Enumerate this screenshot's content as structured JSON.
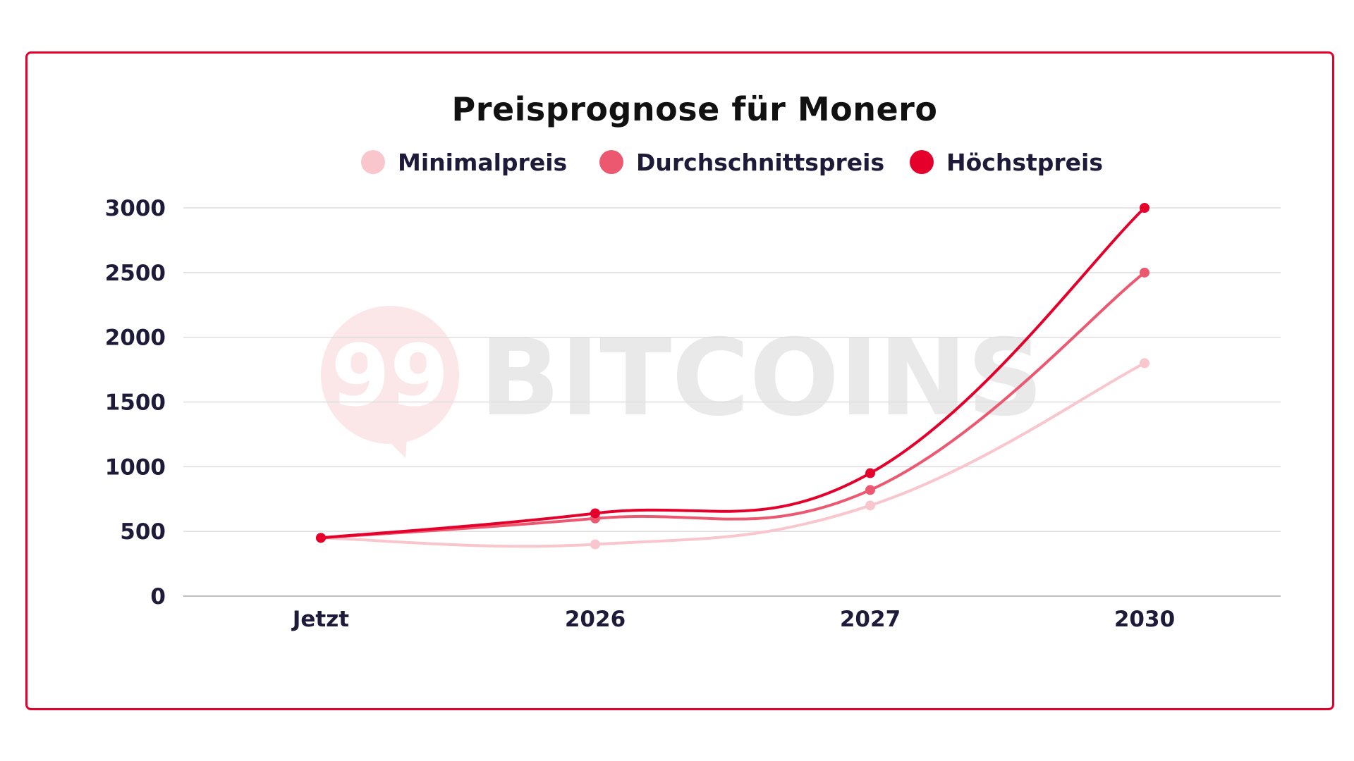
{
  "chart_data": {
    "type": "line",
    "title": "Preisprognose für Monero",
    "categories": [
      "Jetzt",
      "2026",
      "2027",
      "2030"
    ],
    "series": [
      {
        "name": "Minimalpreis",
        "color": "#f8c6cc",
        "values": [
          450,
          400,
          700,
          1800
        ]
      },
      {
        "name": "Durchschnittspreis",
        "color": "#ec5870",
        "values": [
          450,
          600,
          820,
          2500
        ]
      },
      {
        "name": "Höchstpreis",
        "color": "#e4002b",
        "values": [
          450,
          640,
          950,
          3000
        ]
      }
    ],
    "yticks": [
      0,
      500,
      1000,
      1500,
      2000,
      2500,
      3000
    ],
    "ylim": [
      0,
      3000
    ],
    "grid": true,
    "legend_position": "top",
    "xlabel": "",
    "ylabel": ""
  },
  "watermark": {
    "text": "BITCOINS",
    "logo": "99"
  },
  "colors": {
    "frame": "#e4002b",
    "text": "#1e1a3a"
  }
}
